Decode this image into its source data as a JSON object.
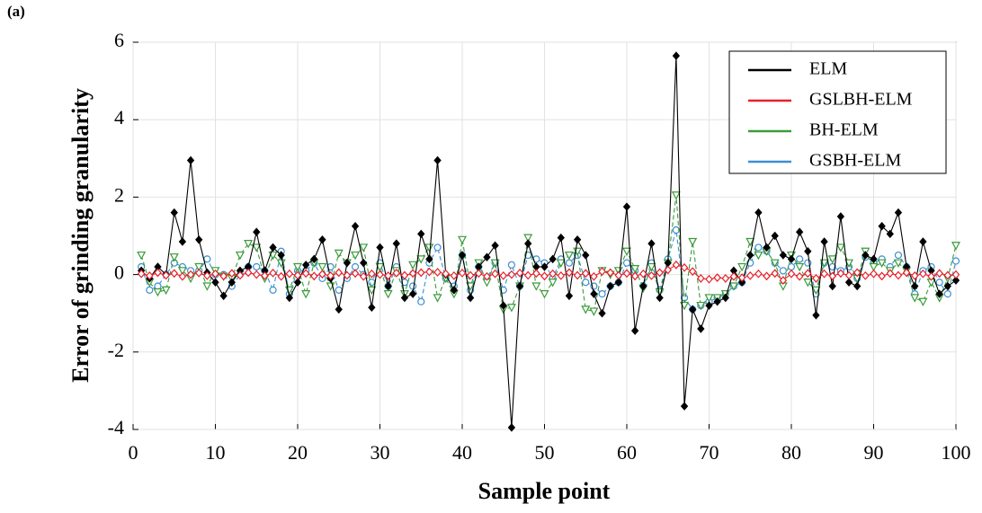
{
  "chart_data": {
    "type": "line",
    "panel_label": "(a)",
    "x_label": "Sample point",
    "y_label": "Error of grinding granularity",
    "xlim": [
      0,
      100
    ],
    "xticks": [
      0,
      10,
      20,
      30,
      40,
      50,
      60,
      70,
      80,
      90,
      100
    ],
    "ylim": [
      -4,
      6
    ],
    "yticks": [
      -4,
      -2,
      0,
      2,
      4,
      6
    ],
    "grid": true,
    "legend": "upper right",
    "x": [
      1,
      2,
      3,
      4,
      5,
      6,
      7,
      8,
      9,
      10,
      11,
      12,
      13,
      14,
      15,
      16,
      17,
      18,
      19,
      20,
      21,
      22,
      23,
      24,
      25,
      26,
      27,
      28,
      29,
      30,
      31,
      32,
      33,
      34,
      35,
      36,
      37,
      38,
      39,
      40,
      41,
      42,
      43,
      44,
      45,
      46,
      47,
      48,
      49,
      50,
      51,
      52,
      53,
      54,
      55,
      56,
      57,
      58,
      59,
      60,
      61,
      62,
      63,
      64,
      65,
      66,
      67,
      68,
      69,
      70,
      71,
      72,
      73,
      74,
      75,
      76,
      77,
      78,
      79,
      80,
      81,
      82,
      83,
      84,
      85,
      86,
      87,
      88,
      89,
      90,
      91,
      92,
      93,
      94,
      95,
      96,
      97,
      98,
      99,
      100
    ],
    "series": [
      {
        "name": "ELM",
        "color": "#000000",
        "values": [
          0.1,
          -0.1,
          0.2,
          0.0,
          1.6,
          0.85,
          2.95,
          0.9,
          0.05,
          -0.2,
          -0.55,
          -0.2,
          0.1,
          0.2,
          1.1,
          0.1,
          0.7,
          0.5,
          -0.6,
          -0.2,
          0.25,
          0.4,
          0.9,
          -0.1,
          -0.9,
          0.3,
          1.25,
          0.3,
          -0.85,
          0.7,
          -0.3,
          0.8,
          -0.6,
          -0.5,
          1.05,
          0.4,
          2.95,
          0.0,
          -0.4,
          0.5,
          -0.6,
          0.2,
          0.45,
          0.75,
          -0.8,
          -3.95,
          -0.3,
          0.8,
          0.2,
          0.2,
          0.4,
          0.95,
          -0.55,
          0.9,
          0.5,
          -0.5,
          -1.0,
          -0.3,
          -0.2,
          1.75,
          -1.45,
          -0.3,
          0.8,
          -0.6,
          0.3,
          5.65,
          -3.4,
          -0.9,
          -1.4,
          -0.8,
          -0.7,
          -0.6,
          0.1,
          -0.2,
          0.5,
          1.6,
          0.7,
          1.0,
          0.5,
          0.4,
          1.1,
          0.6,
          -1.05,
          0.85,
          -0.3,
          1.5,
          -0.2,
          -0.3,
          0.5,
          0.4,
          1.25,
          1.05,
          1.6,
          0.2,
          -0.3,
          0.85,
          0.1,
          -0.5,
          -0.3,
          -0.15
        ]
      },
      {
        "name": "GSLBH-ELM",
        "color": "#e8202a",
        "values": [
          0.02,
          -0.03,
          0.05,
          -0.02,
          0.03,
          -0.05,
          0.0,
          0.04,
          -0.03,
          0.02,
          -0.04,
          0.03,
          -0.02,
          0.05,
          0.0,
          -0.03,
          0.04,
          -0.05,
          0.02,
          -0.02,
          0.03,
          -0.04,
          0.01,
          -0.03,
          0.05,
          -0.02,
          0.03,
          -0.05,
          0.02,
          0.0,
          -0.03,
          0.04,
          -0.02,
          0.03,
          0.05,
          0.07,
          0.06,
          0.02,
          -0.03,
          0.04,
          -0.02,
          0.03,
          -0.05,
          0.02,
          -0.03,
          0.0,
          0.04,
          -0.02,
          0.03,
          -0.04,
          0.02,
          -0.03,
          0.05,
          -0.02,
          0.03,
          -0.05,
          0.08,
          0.05,
          -0.02,
          0.03,
          -0.04,
          0.02,
          -0.03,
          0.05,
          0.12,
          0.25,
          0.18,
          0.08,
          -0.1,
          -0.12,
          -0.08,
          -0.1,
          -0.05,
          -0.08,
          -0.03,
          0.02,
          -0.04,
          0.03,
          -0.15,
          0.02,
          -0.05,
          0.03,
          -0.1,
          0.02,
          -0.04,
          0.03,
          -0.02,
          0.05,
          -0.03,
          0.02,
          -0.04,
          0.03,
          -0.02,
          0.05,
          -0.03,
          0.02,
          -0.05,
          0.03,
          -0.02,
          0.0
        ]
      },
      {
        "name": "BH-ELM",
        "color": "#3a9b3a",
        "values": [
          0.5,
          -0.2,
          -0.45,
          -0.4,
          0.45,
          0.1,
          -0.1,
          0.2,
          -0.3,
          0.1,
          -0.05,
          -0.1,
          0.5,
          0.8,
          0.7,
          -0.1,
          0.5,
          0.3,
          -0.4,
          0.2,
          -0.5,
          0.3,
          0.2,
          -0.3,
          0.55,
          0.3,
          0.5,
          0.7,
          -0.4,
          0.2,
          -0.5,
          0.1,
          -0.5,
          0.25,
          0.4,
          0.7,
          -0.6,
          -0.1,
          -0.5,
          0.9,
          -0.3,
          0.3,
          -0.2,
          0.3,
          -0.9,
          -0.85,
          -0.3,
          0.95,
          -0.3,
          -0.5,
          -0.2,
          0.3,
          0.5,
          0.6,
          -0.9,
          -0.95,
          0.1,
          0.0,
          0.1,
          0.6,
          0.15,
          -0.35,
          0.2,
          -0.45,
          0.3,
          2.05,
          -0.8,
          0.85,
          -0.8,
          -0.6,
          -0.6,
          -0.5,
          -0.3,
          0.2,
          0.85,
          0.5,
          0.6,
          0.3,
          -0.3,
          0.5,
          0.2,
          -0.2,
          -0.4,
          0.3,
          0.4,
          0.7,
          0.3,
          -0.1,
          0.6,
          0.2,
          0.3,
          0.1,
          0.3,
          0.1,
          -0.6,
          -0.7,
          -0.2,
          -0.6,
          -0.1,
          0.75
        ]
      },
      {
        "name": "GSBH-ELM",
        "color": "#3d8fd1",
        "values": [
          0.2,
          -0.4,
          -0.3,
          0.0,
          0.3,
          0.2,
          0.1,
          0.1,
          0.4,
          0.0,
          0.0,
          -0.3,
          0.0,
          0.2,
          0.2,
          0.1,
          -0.4,
          0.6,
          -0.5,
          0.1,
          0.1,
          0.3,
          -0.1,
          0.2,
          -0.4,
          -0.1,
          0.2,
          0.0,
          -0.2,
          0.3,
          -0.3,
          0.2,
          -0.2,
          -0.3,
          -0.7,
          0.3,
          0.7,
          -0.1,
          -0.3,
          0.5,
          -0.4,
          0.2,
          -0.1,
          0.3,
          -0.4,
          0.25,
          -0.3,
          0.5,
          0.4,
          0.3,
          -0.1,
          0.4,
          0.3,
          0.5,
          -0.2,
          -0.3,
          -0.5,
          -0.3,
          -0.2,
          0.3,
          0.1,
          -0.3,
          0.3,
          -0.4,
          0.4,
          1.15,
          -0.6,
          -0.9,
          -0.8,
          -0.7,
          -0.6,
          -0.5,
          -0.3,
          -0.2,
          0.3,
          0.7,
          0.6,
          0.3,
          0.1,
          0.2,
          0.4,
          0.3,
          -0.5,
          0.3,
          0.2,
          0.1,
          0.2,
          -0.1,
          0.45,
          0.3,
          0.4,
          0.2,
          0.5,
          0.2,
          -0.5,
          0.1,
          0.2,
          -0.2,
          -0.5,
          0.35
        ]
      }
    ]
  }
}
